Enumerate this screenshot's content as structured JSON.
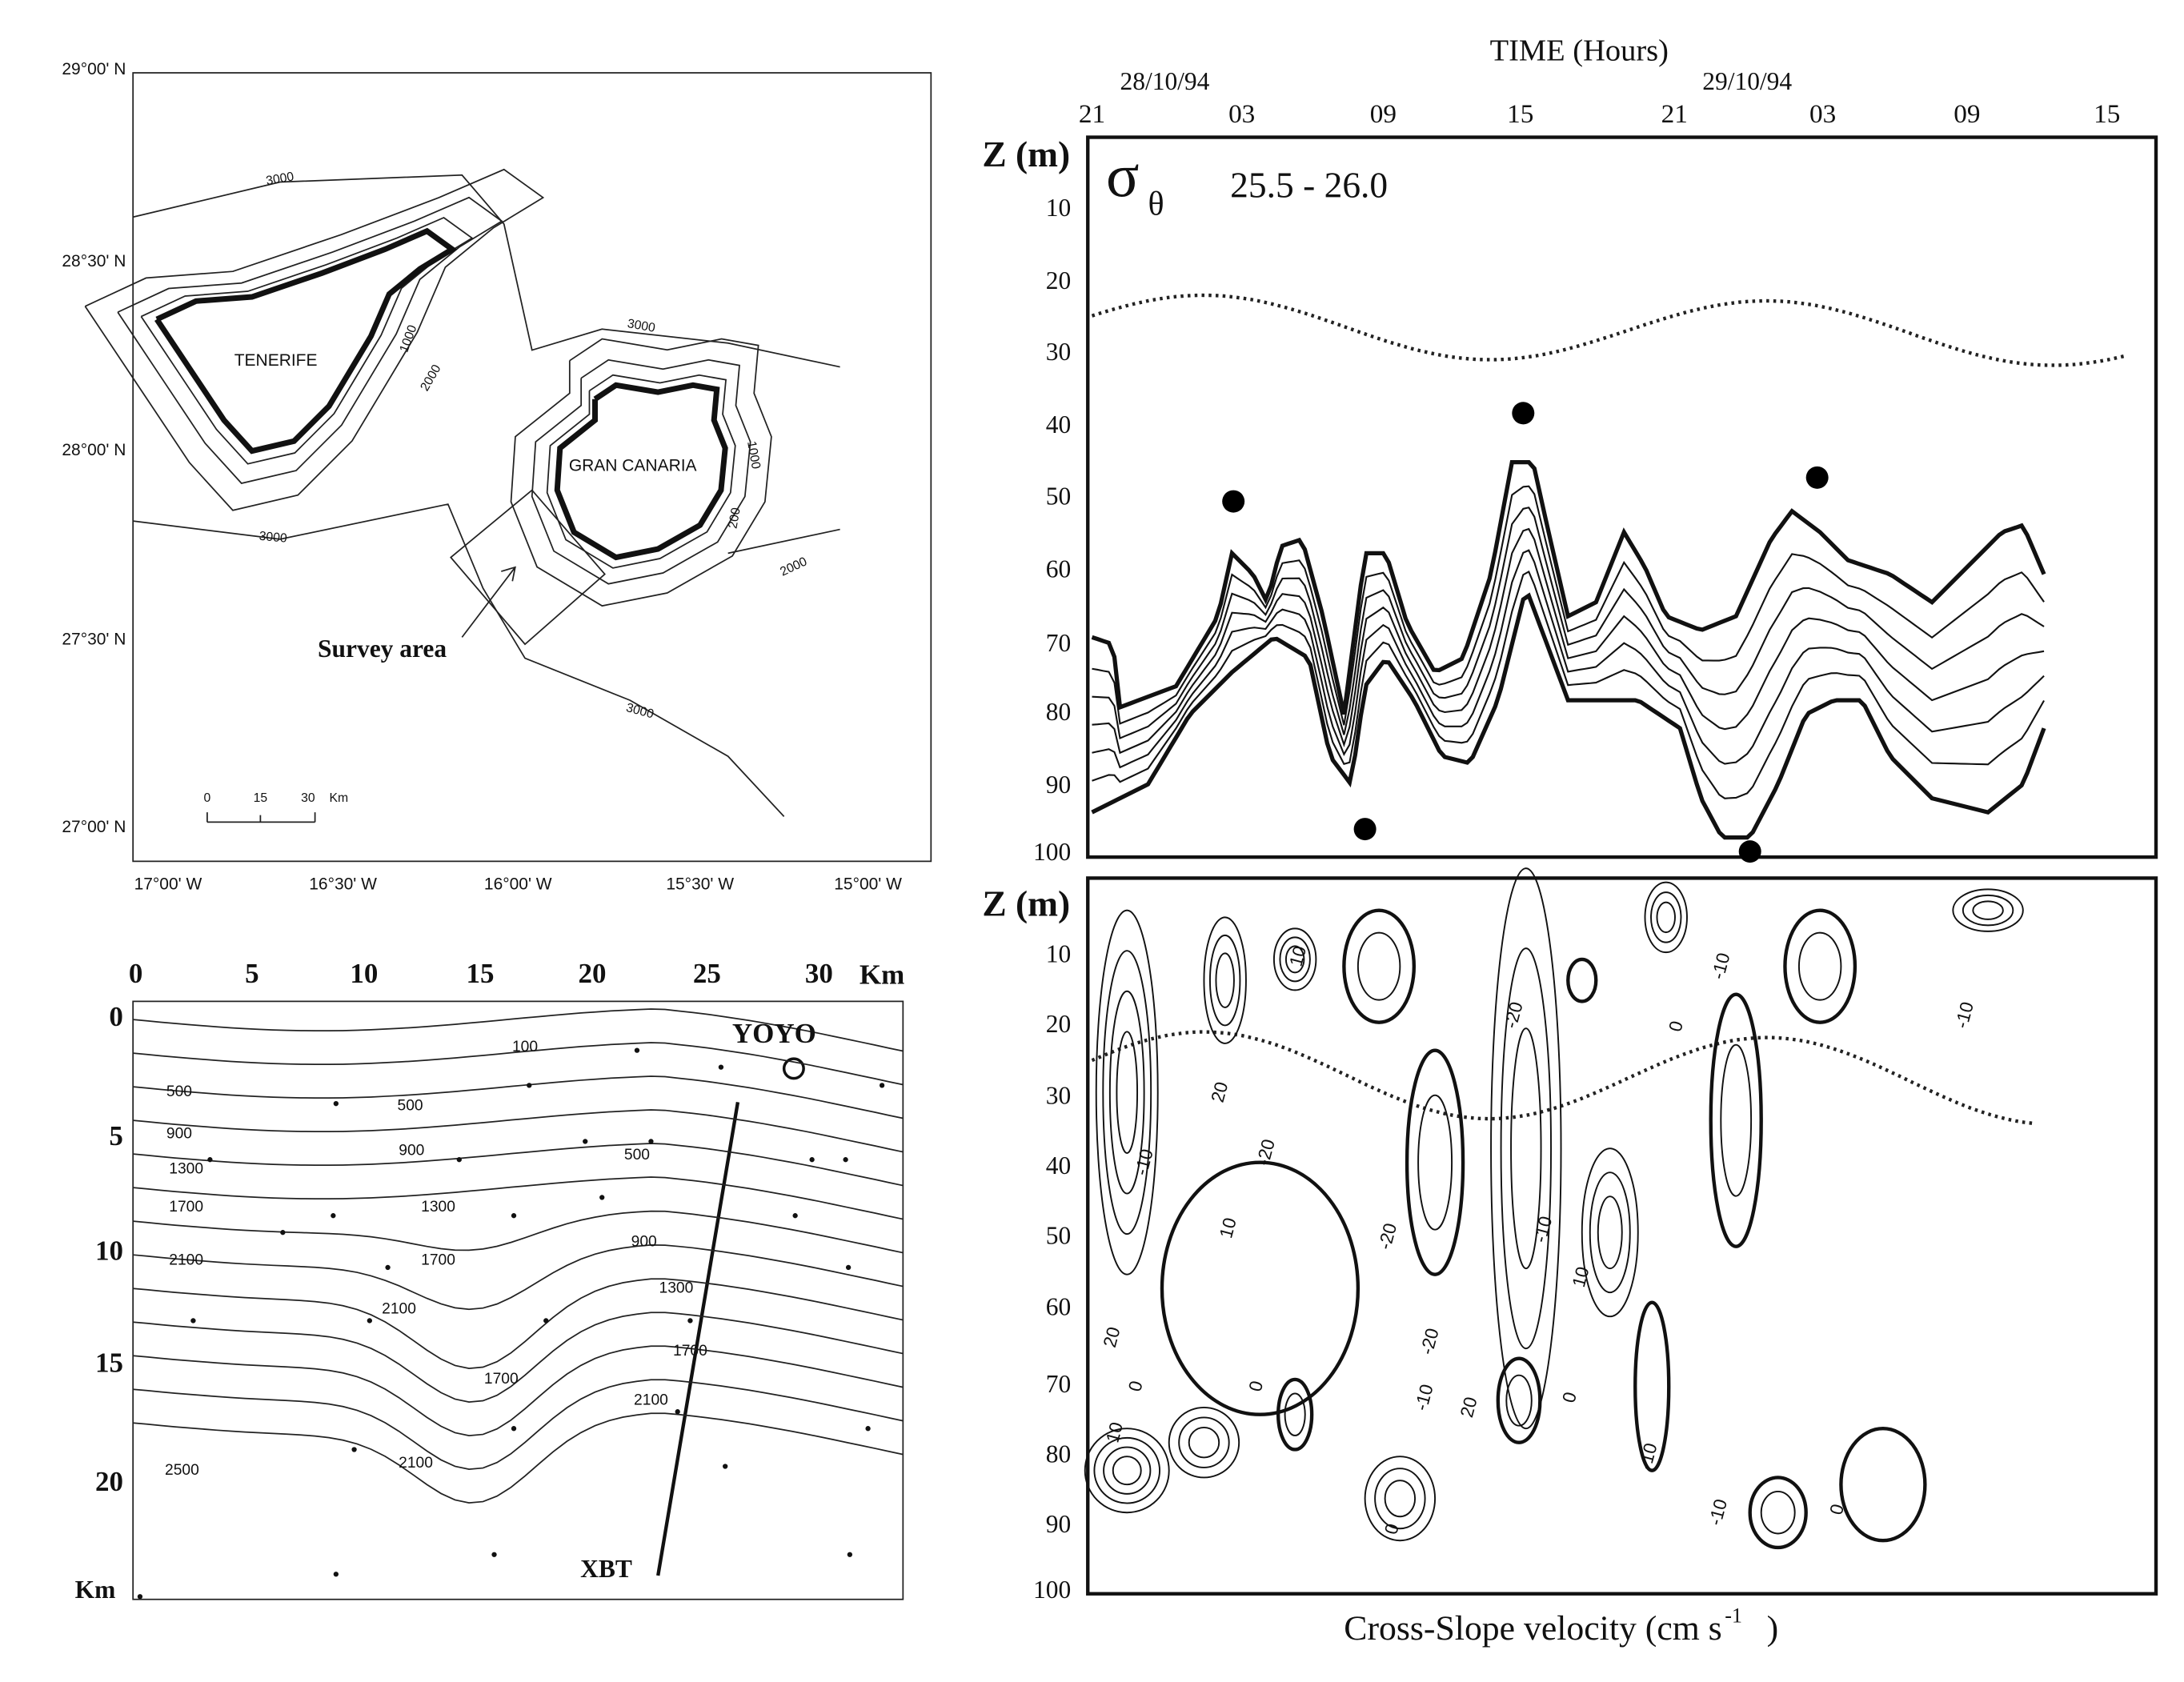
{
  "map": {
    "lat_labels": [
      "29°00' N",
      "28°30' N",
      "28°00' N",
      "27°30' N",
      "27°00' N"
    ],
    "lon_labels": [
      "17°00' W",
      "16°30' W",
      "16°00' W",
      "15°30' W",
      "15°00' W"
    ],
    "islands": [
      "TENERIFE",
      "GRAN  CANARIA"
    ],
    "contour_labels": [
      "3000",
      "1000",
      "2000",
      "3000",
      "1000",
      "200",
      "2000",
      "3000",
      "3000"
    ],
    "survey_label": "Survey area",
    "scale_labels": [
      "0",
      "15",
      "30",
      "Km"
    ]
  },
  "survey_grid": {
    "x_ticks": [
      "0",
      "5",
      "10",
      "15",
      "20",
      "25",
      "30"
    ],
    "x_unit": "Km",
    "y_ticks": [
      "0",
      "5",
      "10",
      "15",
      "20"
    ],
    "y_unit": "Km",
    "contour_labels": [
      "100",
      "500",
      "500",
      "900",
      "900",
      "500",
      "1300",
      "1700",
      "1300",
      "900",
      "2100",
      "1700",
      "1300",
      "2100",
      "1700",
      "1700",
      "2100",
      "2100",
      "2500"
    ],
    "yoyo_label": "YOYO",
    "xbt_label": "XBT"
  },
  "density_panel": {
    "time_title": "TIME (Hours)",
    "dates": [
      "28/10/94",
      "29/10/94"
    ],
    "hour_ticks": [
      "21",
      "03",
      "09",
      "15",
      "21",
      "03",
      "09",
      "15"
    ],
    "z_label": "Z (m)",
    "depth_ticks": [
      "10",
      "20",
      "30",
      "40",
      "50",
      "60",
      "70",
      "80",
      "90",
      "100"
    ],
    "symbol": "σ",
    "symbol_sub": "θ",
    "range_label": "25.5 - 26.0"
  },
  "velocity_panel": {
    "z_label": "Z (m)",
    "depth_ticks": [
      "10",
      "20",
      "30",
      "40",
      "50",
      "60",
      "70",
      "80",
      "90",
      "100"
    ],
    "contour_labels": [
      "10",
      "-10",
      "-20",
      "20",
      "-20",
      "0",
      "-10",
      "-10",
      "10",
      "-20",
      "-10",
      "10",
      "20",
      "0",
      "0",
      "-20",
      "-10",
      "0",
      "20",
      "10",
      "-10",
      "0",
      "-10",
      "0"
    ],
    "caption": "Cross-Slope velocity (cm s",
    "caption_sup": "-1",
    "caption_end": ")"
  }
}
